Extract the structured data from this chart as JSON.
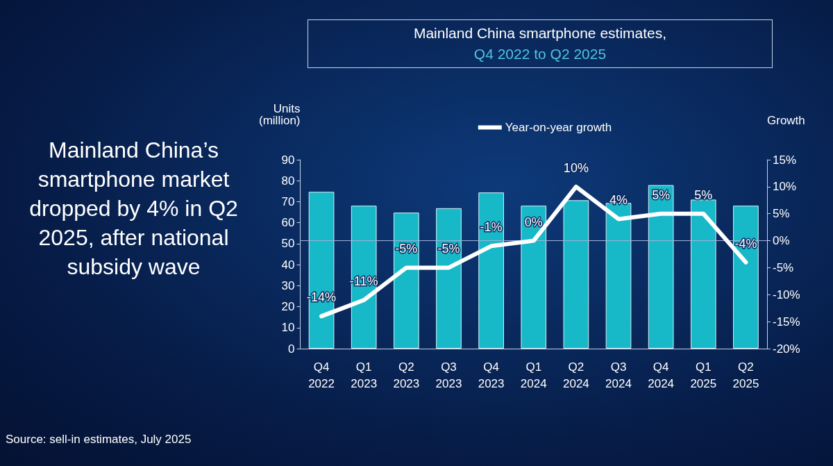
{
  "chart_data": {
    "type": "bar",
    "title": "Mainland China smartphone estimates,",
    "subtitle": "Q4 2022 to Q2 2025",
    "categories": [
      "Q4\n2022",
      "Q1\n2023",
      "Q2\n2023",
      "Q3\n2023",
      "Q4\n2023",
      "Q1\n2024",
      "Q2\n2024",
      "Q3\n2024",
      "Q4\n2024",
      "Q1\n2025",
      "Q2\n2025"
    ],
    "series": [
      {
        "type": "bar",
        "color": "#17b8c8",
        "values": [
          74.7,
          68.1,
          64.8,
          66.9,
          74.4,
          68.1,
          70.7,
          69.4,
          77.9,
          71.0,
          68.1
        ]
      },
      {
        "type": "line",
        "name": "Year-on-year growth",
        "color": "#ffffff",
        "axis": "y2",
        "values": [
          -14,
          -11,
          -5,
          -5,
          -1,
          0,
          10,
          4,
          5,
          5,
          -4
        ],
        "value_labels": [
          "-14%",
          "-11%",
          "-5%",
          "-5%",
          "-1%",
          "0%",
          "10%",
          "4%",
          "5%",
          "5%",
          "-4%"
        ]
      }
    ],
    "ylabel": "Units\n(million)",
    "y2label": "Growth",
    "ylim": [
      0,
      90
    ],
    "yticks": [
      0,
      10,
      20,
      30,
      40,
      50,
      60,
      70,
      80,
      90
    ],
    "y2lim": [
      -20,
      15
    ],
    "y2ticks": [
      {
        "value": -20,
        "label": "-20%"
      },
      {
        "value": -15,
        "label": "-15%"
      },
      {
        "value": -10,
        "label": "-10%"
      },
      {
        "value": -5,
        "label": "-5%"
      },
      {
        "value": 0,
        "label": "0%"
      },
      {
        "value": 5,
        "label": "5%"
      },
      {
        "value": 10,
        "label": "10%"
      },
      {
        "value": 15,
        "label": "15%"
      }
    ],
    "ref_lines": [
      {
        "axis": "y2",
        "value": 0,
        "color": "#9fb3d9"
      }
    ],
    "grid": false,
    "legend": "top",
    "marker": "none",
    "line_style": "solid",
    "annotations": [
      "Mainland China’s smartphone market dropped by 4% in Q2 2025, after national subsidy wave",
      "Source: sell-in estimates, July 2025"
    ]
  }
}
